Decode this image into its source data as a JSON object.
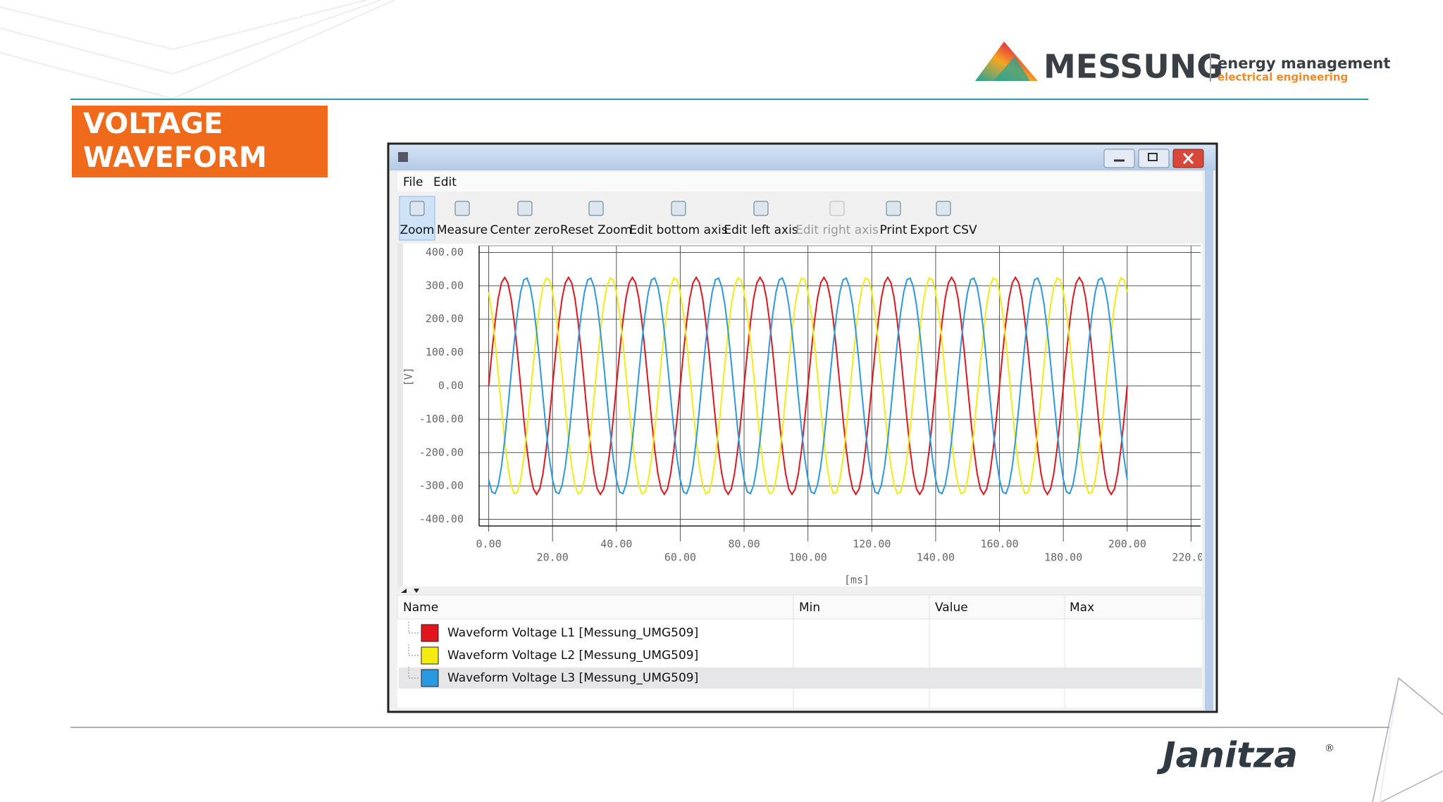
{
  "header": {
    "title": [
      "VOLTAGE",
      "WAVEFORM"
    ]
  },
  "logo": {
    "name": "MESSUNG",
    "tagline": "energy management",
    "subtagline": "electrical engineering"
  },
  "footer": {
    "brand": "Janitza",
    "mark": "®"
  },
  "window": {
    "menu": [
      "File",
      "Edit"
    ],
    "toolbar": [
      {
        "label": "Zoom",
        "enabled": true,
        "selected": true
      },
      {
        "label": "Measure",
        "enabled": true,
        "selected": false
      },
      {
        "label": "Center zero",
        "enabled": true,
        "selected": false
      },
      {
        "label": "Reset Zoom",
        "enabled": true,
        "selected": false
      },
      {
        "label": "Edit bottom axis",
        "enabled": true,
        "selected": false
      },
      {
        "label": "Edit left axis",
        "enabled": true,
        "selected": false
      },
      {
        "label": "Edit right axis",
        "enabled": false,
        "selected": false
      },
      {
        "label": "Print",
        "enabled": true,
        "selected": false
      },
      {
        "label": "Export CSV",
        "enabled": true,
        "selected": false
      }
    ],
    "table": {
      "columns": [
        "Name",
        "Min",
        "Value",
        "Max"
      ]
    }
  },
  "chart_data": {
    "type": "line",
    "xlabel": "[ms]",
    "ylabel": "[V]",
    "grid": true,
    "xlim": [
      -3,
      223
    ],
    "ylim": [
      -420,
      420
    ],
    "xticks": [
      {
        "value": 0,
        "label": "0.00"
      },
      {
        "value": 20,
        "label": "20.00"
      },
      {
        "value": 40,
        "label": "40.00"
      },
      {
        "value": 60,
        "label": "60.00"
      },
      {
        "value": 80,
        "label": "80.00"
      },
      {
        "value": 100,
        "label": "100.00"
      },
      {
        "value": 120,
        "label": "120.00"
      },
      {
        "value": 140,
        "label": "140.00"
      },
      {
        "value": 160,
        "label": "160.00"
      },
      {
        "value": 180,
        "label": "180.00"
      },
      {
        "value": 200,
        "label": "200.00"
      },
      {
        "value": 220,
        "label": "220.00"
      }
    ],
    "yticks": [
      {
        "value": 400,
        "label": "400.00"
      },
      {
        "value": 300,
        "label": "300.00"
      },
      {
        "value": 200,
        "label": "200.00"
      },
      {
        "value": 100,
        "label": "100.00"
      },
      {
        "value": 0,
        "label": "0.00"
      },
      {
        "value": -100,
        "label": "-100.00"
      },
      {
        "value": -200,
        "label": "-200.00"
      },
      {
        "value": -300,
        "label": "-300.00"
      },
      {
        "value": -400,
        "label": "-400.00"
      }
    ],
    "x": [
      0,
      1,
      2,
      3,
      4,
      5,
      6,
      7,
      8,
      9,
      10,
      11,
      12,
      13,
      14,
      15,
      16,
      17,
      18,
      19,
      20,
      21,
      22,
      23,
      24,
      25,
      26,
      27,
      28,
      29,
      30,
      31,
      32,
      33,
      34,
      35,
      36,
      37,
      38,
      39,
      40,
      41,
      42,
      43,
      44,
      45,
      46,
      47,
      48,
      49,
      50,
      51,
      52,
      53,
      54,
      55,
      56,
      57,
      58,
      59,
      60,
      61,
      62,
      63,
      64,
      65,
      66,
      67,
      68,
      69,
      70,
      71,
      72,
      73,
      74,
      75,
      76,
      77,
      78,
      79,
      80,
      81,
      82,
      83,
      84,
      85,
      86,
      87,
      88,
      89,
      90,
      91,
      92,
      93,
      94,
      95,
      96,
      97,
      98,
      99,
      100,
      101,
      102,
      103,
      104,
      105,
      106,
      107,
      108,
      109,
      110,
      111,
      112,
      113,
      114,
      115,
      116,
      117,
      118,
      119,
      120,
      121,
      122,
      123,
      124,
      125,
      126,
      127,
      128,
      129,
      130,
      131,
      132,
      133,
      134,
      135,
      136,
      137,
      138,
      139,
      140,
      141,
      142,
      143,
      144,
      145,
      146,
      147,
      148,
      149,
      150,
      151,
      152,
      153,
      154,
      155,
      156,
      157,
      158,
      159,
      160,
      161,
      162,
      163,
      164,
      165,
      166,
      167,
      168,
      169,
      170,
      171,
      172,
      173,
      174,
      175,
      176,
      177,
      178,
      179,
      180,
      181,
      182,
      183,
      184,
      185,
      186,
      187,
      188,
      189,
      190,
      191,
      192,
      193,
      194,
      195,
      196,
      197,
      198,
      199,
      200
    ],
    "series": [
      {
        "name": "Waveform Voltage L1 [Messung_UMG509]",
        "color": "#e3141b",
        "values": [
          0,
          100,
          191,
          263,
          309,
          325,
          309,
          263,
          191,
          100,
          0,
          -100,
          -191,
          -263,
          -309,
          -325,
          -309,
          -263,
          -191,
          -100,
          0,
          100,
          191,
          263,
          309,
          325,
          309,
          263,
          191,
          100,
          0,
          -100,
          -191,
          -263,
          -309,
          -325,
          -309,
          -263,
          -191,
          -100,
          0,
          100,
          191,
          263,
          309,
          325,
          309,
          263,
          191,
          100,
          0,
          -100,
          -191,
          -263,
          -309,
          -325,
          -309,
          -263,
          -191,
          -100,
          0,
          100,
          191,
          263,
          309,
          325,
          309,
          263,
          191,
          100,
          0,
          -100,
          -191,
          -263,
          -309,
          -325,
          -309,
          -263,
          -191,
          -100,
          0,
          100,
          191,
          263,
          309,
          325,
          309,
          263,
          191,
          100,
          0,
          -100,
          -191,
          -263,
          -309,
          -325,
          -309,
          -263,
          -191,
          -100,
          0,
          100,
          191,
          263,
          309,
          325,
          309,
          263,
          191,
          100,
          0,
          -100,
          -191,
          -263,
          -309,
          -325,
          -309,
          -263,
          -191,
          -100,
          0,
          100,
          191,
          263,
          309,
          325,
          309,
          263,
          191,
          100,
          0,
          -100,
          -191,
          -263,
          -309,
          -325,
          -309,
          -263,
          -191,
          -100,
          0,
          100,
          191,
          263,
          309,
          325,
          309,
          263,
          191,
          100,
          0,
          -100,
          -191,
          -263,
          -309,
          -325,
          -309,
          -263,
          -191,
          -100,
          0,
          100,
          191,
          263,
          309,
          325,
          309,
          263,
          191,
          100,
          0,
          -100,
          -191,
          -263,
          -309,
          -325,
          -309,
          -263,
          -191,
          -100,
          0,
          100,
          191,
          263,
          309,
          325,
          309,
          263,
          191,
          100,
          0,
          -100,
          -191,
          -263,
          -309,
          -325,
          -309,
          -263,
          -191,
          -100,
          0
        ]
      },
      {
        "name": "Waveform Voltage L2 [Messung_UMG509]",
        "color": "#f4ec10",
        "values": [
          281,
          217,
          132,
          34,
          -68,
          -163,
          -242,
          -297,
          -323,
          -318,
          -281,
          -217,
          -132,
          -34,
          68,
          163,
          242,
          297,
          323,
          318,
          281,
          217,
          132,
          34,
          -68,
          -163,
          -242,
          -297,
          -323,
          -318,
          -281,
          -217,
          -132,
          -34,
          68,
          163,
          242,
          297,
          323,
          318,
          281,
          217,
          132,
          34,
          -68,
          -163,
          -242,
          -297,
          -323,
          -318,
          -281,
          -217,
          -132,
          -34,
          68,
          163,
          242,
          297,
          323,
          318,
          281,
          217,
          132,
          34,
          -68,
          -163,
          -242,
          -297,
          -323,
          -318,
          -281,
          -217,
          -132,
          -34,
          68,
          163,
          242,
          297,
          323,
          318,
          281,
          217,
          132,
          34,
          -68,
          -163,
          -242,
          -297,
          -323,
          -318,
          -281,
          -217,
          -132,
          -34,
          68,
          163,
          242,
          297,
          323,
          318,
          281,
          217,
          132,
          34,
          -68,
          -163,
          -242,
          -297,
          -323,
          -318,
          -281,
          -217,
          -132,
          -34,
          68,
          163,
          242,
          297,
          323,
          318,
          281,
          217,
          132,
          34,
          -68,
          -163,
          -242,
          -297,
          -323,
          -318,
          -281,
          -217,
          -132,
          -34,
          68,
          163,
          242,
          297,
          323,
          318,
          281,
          217,
          132,
          34,
          -68,
          -163,
          -242,
          -297,
          -323,
          -318,
          -281,
          -217,
          -132,
          -34,
          68,
          163,
          242,
          297,
          323,
          318,
          281,
          217,
          132,
          34,
          -68,
          -163,
          -242,
          -297,
          -323,
          -318,
          -281,
          -217,
          -132,
          -34,
          68,
          163,
          242,
          297,
          323,
          318,
          281,
          217,
          132,
          34,
          -68,
          -163,
          -242,
          -297,
          -323,
          -318,
          -281,
          -217,
          -132,
          -34,
          68,
          163,
          242,
          297,
          323,
          318,
          281
        ]
      },
      {
        "name": "Waveform Voltage L3 [Messung_UMG509]",
        "color": "#2a9ae0",
        "values": [
          -281,
          -318,
          -323,
          -297,
          -242,
          -163,
          -68,
          34,
          132,
          217,
          281,
          318,
          323,
          297,
          242,
          163,
          68,
          -34,
          -132,
          -217,
          -281,
          -318,
          -323,
          -297,
          -242,
          -163,
          -68,
          34,
          132,
          217,
          281,
          318,
          323,
          297,
          242,
          163,
          68,
          -34,
          -132,
          -217,
          -281,
          -318,
          -323,
          -297,
          -242,
          -163,
          -68,
          34,
          132,
          217,
          281,
          318,
          323,
          297,
          242,
          163,
          68,
          -34,
          -132,
          -217,
          -281,
          -318,
          -323,
          -297,
          -242,
          -163,
          -68,
          34,
          132,
          217,
          281,
          318,
          323,
          297,
          242,
          163,
          68,
          -34,
          -132,
          -217,
          -281,
          -318,
          -323,
          -297,
          -242,
          -163,
          -68,
          34,
          132,
          217,
          281,
          318,
          323,
          297,
          242,
          163,
          68,
          -34,
          -132,
          -217,
          -281,
          -318,
          -323,
          -297,
          -242,
          -163,
          -68,
          34,
          132,
          217,
          281,
          318,
          323,
          297,
          242,
          163,
          68,
          -34,
          -132,
          -217,
          -281,
          -318,
          -323,
          -297,
          -242,
          -163,
          -68,
          34,
          132,
          217,
          281,
          318,
          323,
          297,
          242,
          163,
          68,
          -34,
          -132,
          -217,
          -281,
          -318,
          -323,
          -297,
          -242,
          -163,
          -68,
          34,
          132,
          217,
          281,
          318,
          323,
          297,
          242,
          163,
          68,
          -34,
          -132,
          -217,
          -281,
          -318,
          -323,
          -297,
          -242,
          -163,
          -68,
          34,
          132,
          217,
          281,
          318,
          323,
          297,
          242,
          163,
          68,
          -34,
          -132,
          -217,
          -281,
          -318,
          -323,
          -297,
          -242,
          -163,
          -68,
          34,
          132,
          217,
          281,
          318,
          323,
          297,
          242,
          163,
          68,
          -34,
          -132,
          -217,
          -281
        ]
      }
    ]
  }
}
